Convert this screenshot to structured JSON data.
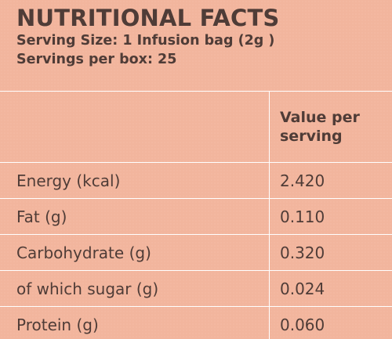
{
  "header": {
    "title": "NUTRITIONAL FACTS",
    "serving_size": "Serving Size: 1 Infusion bag (2g )",
    "servings_per_box": "Servings per box: 25"
  },
  "table": {
    "value_header": "Value per serving",
    "rows": [
      {
        "label": "Energy (kcal)",
        "value": "2.420"
      },
      {
        "label": "Fat (g)",
        "value": "0.110"
      },
      {
        "label": "Carbohydrate (g)",
        "value": "0.320"
      },
      {
        "label": "of which sugar (g)",
        "value": "0.024"
      },
      {
        "label": "Protein (g)",
        "value": "0.060"
      }
    ]
  }
}
